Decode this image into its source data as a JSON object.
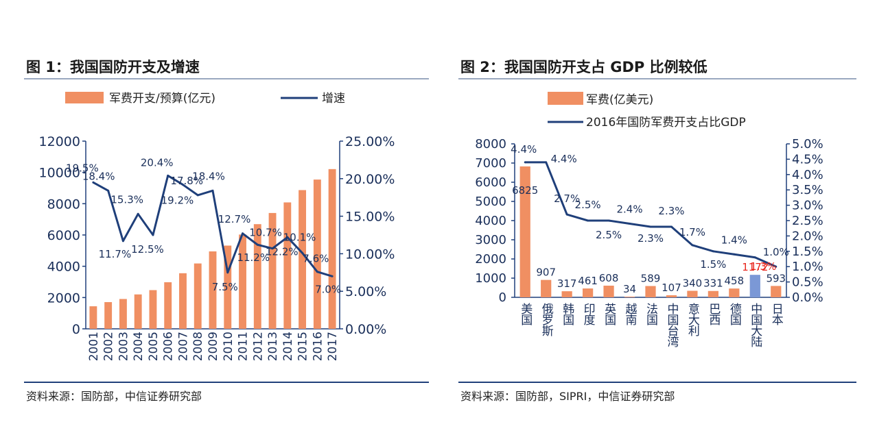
{
  "colors": {
    "bar": "#f08f62",
    "bar_highlight": "#7b98d6",
    "line": "#1f3f7a",
    "axis": "#1f3f7a",
    "highlight_label": "#e8251c"
  },
  "charts": [
    {
      "title": "图 1：我国国防开支及增速",
      "source": "资料来源：国防部，中信证券研究部",
      "chart_data": {
        "type": "bar",
        "legend": [
          {
            "type": "bar",
            "label": "军费开支/预算(亿元)"
          },
          {
            "type": "line",
            "label": "增速"
          }
        ],
        "categories": [
          "2001",
          "2002",
          "2003",
          "2004",
          "2005",
          "2006",
          "2007",
          "2008",
          "2009",
          "2010",
          "2011",
          "2012",
          "2013",
          "2014",
          "2015",
          "2016",
          "2017"
        ],
        "series": [
          {
            "name": "军费开支/预算(亿元)",
            "type": "bar",
            "axis": "left",
            "values": [
              1442,
              1708,
              1908,
              2200,
              2475,
              2979,
              3555,
              4179,
              4951,
              5321,
              6028,
              6692,
              7406,
              8082,
              8869,
              9543,
              10211
            ]
          },
          {
            "name": "增速",
            "type": "line",
            "axis": "right",
            "values": [
              19.5,
              18.4,
              11.7,
              15.3,
              12.5,
              20.4,
              19.2,
              17.8,
              18.4,
              7.5,
              12.7,
              11.2,
              10.7,
              12.2,
              10.1,
              7.6,
              7.0
            ],
            "labels": [
              "19.5%",
              "18.4%",
              "11.7%",
              "15.3%",
              "12.5%",
              "20.4%",
              "19.2%",
              "17.8%",
              "18.4%",
              "7.5%",
              "12.7%",
              "11.2%",
              "10.7%",
              "12.2%",
              "10.1%",
              "7.6%",
              "7.0%"
            ]
          }
        ],
        "y_left": {
          "range": [
            0,
            12000
          ],
          "ticks": [
            "0",
            "2000",
            "4000",
            "6000",
            "8000",
            "10000",
            "12000"
          ]
        },
        "y_right": {
          "range": [
            0,
            25
          ],
          "ticks": [
            "0.00%",
            "5.00%",
            "10.00%",
            "15.00%",
            "20.00%",
            "25.00%"
          ]
        },
        "legend_position": "top"
      }
    },
    {
      "title": "图 2：我国国防开支占 GDP 比例较低",
      "source": "资料来源：国防部，SIPRI，中信证券研究部",
      "chart_data": {
        "type": "bar",
        "legend": [
          {
            "type": "bar",
            "label": "军费(亿美元)"
          },
          {
            "type": "line",
            "label": "2016年国防军费开支占比GDP"
          }
        ],
        "categories": [
          "美国",
          "俄罗斯",
          "韩国",
          "印度",
          "英国",
          "越南",
          "法国",
          "中国台湾",
          "意大利",
          "巴西",
          "德国",
          "中国大陆",
          "日本"
        ],
        "highlight_index": 11,
        "series": [
          {
            "name": "军费(亿美元)",
            "type": "bar",
            "axis": "left",
            "values": [
              6825,
              907,
              317,
              461,
              608,
              34,
              589,
              107,
              340,
              331,
              458,
              1172,
              593
            ],
            "labels": [
              "6825",
              "907",
              "317",
              "461",
              "608",
              "34",
              "589",
              "107",
              "340",
              "331",
              "458",
              "1172",
              "593"
            ]
          },
          {
            "name": "2016年国防军费开支占比GDP",
            "type": "line",
            "axis": "right",
            "values": [
              4.4,
              4.4,
              2.7,
              2.5,
              2.5,
              2.4,
              2.3,
              2.3,
              1.7,
              1.5,
              1.4,
              1.3,
              1.0
            ],
            "labels": [
              "4.4%",
              "4.4%",
              "2.7%",
              "2.5%",
              "2.5%",
              "2.4%",
              "2.3%",
              "2.3%",
              "1.7%",
              "1.5%",
              "1.4%",
              "1.3%",
              "1.0%"
            ]
          }
        ],
        "y_left": {
          "range": [
            0,
            8000
          ],
          "ticks": [
            "0",
            "1000",
            "2000",
            "3000",
            "4000",
            "5000",
            "6000",
            "7000",
            "8000"
          ]
        },
        "y_right": {
          "range": [
            0,
            5
          ],
          "ticks": [
            "0.0%",
            "0.5%",
            "1.0%",
            "1.5%",
            "2.0%",
            "2.5%",
            "3.0%",
            "3.5%",
            "4.0%",
            "4.5%",
            "5.0%"
          ]
        },
        "legend_position": "top"
      }
    }
  ]
}
